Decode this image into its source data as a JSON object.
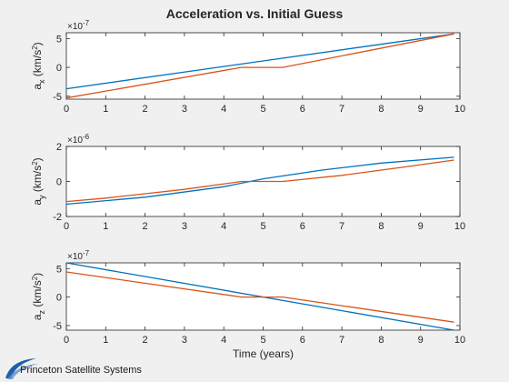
{
  "figure": {
    "title": "Acceleration vs. Initial Guess",
    "logo_text": "Princeton Satellite Systems",
    "colors": {
      "series1": "#0072BD",
      "series2": "#D95319"
    }
  },
  "chart_data": [
    {
      "type": "line",
      "ylabel_main": "a",
      "ylabel_sub": "x",
      "ylabel_unit_left": " (km/s",
      "ylabel_unit_right": ")",
      "ylabel_unit_sup": "2",
      "exponent_base": "×10",
      "exponent_power": "-7",
      "xlabel": "",
      "xlim": [
        0,
        10
      ],
      "ylim": [
        -5.5,
        6
      ],
      "xticks": [
        0,
        1,
        2,
        3,
        4,
        5,
        6,
        7,
        8,
        9,
        10
      ],
      "yticks": [
        -5,
        0,
        5
      ],
      "grid": false,
      "series": [
        {
          "x": [
            0,
            9.85
          ],
          "y": [
            -3.7,
            5.8
          ]
        },
        {
          "x": [
            0,
            4.45,
            5.5,
            9.85
          ],
          "y": [
            -5.3,
            0,
            0,
            5.8
          ]
        }
      ]
    },
    {
      "type": "line",
      "ylabel_main": "a",
      "ylabel_sub": "y",
      "ylabel_unit_left": " (km/s",
      "ylabel_unit_right": ")",
      "ylabel_unit_sup": "2",
      "exponent_base": "×10",
      "exponent_power": "-6",
      "xlabel": "",
      "xlim": [
        0,
        10
      ],
      "ylim": [
        -2,
        2
      ],
      "xticks": [
        0,
        1,
        2,
        3,
        4,
        5,
        6,
        7,
        8,
        9,
        10
      ],
      "yticks": [
        -2,
        0,
        2
      ],
      "grid": false,
      "series": [
        {
          "x": [
            0,
            2,
            4,
            5,
            6.5,
            8,
            9.85
          ],
          "y": [
            -1.3,
            -0.9,
            -0.3,
            0.15,
            0.65,
            1.05,
            1.38
          ]
        },
        {
          "x": [
            0,
            1,
            2,
            3,
            4.45,
            5.5,
            7,
            8.5,
            9.85
          ],
          "y": [
            -1.15,
            -0.95,
            -0.7,
            -0.45,
            0,
            0,
            0.35,
            0.8,
            1.22
          ]
        }
      ]
    },
    {
      "type": "line",
      "ylabel_main": "a",
      "ylabel_sub": "z",
      "ylabel_unit_left": " (km/s",
      "ylabel_unit_right": ")",
      "ylabel_unit_sup": "2",
      "exponent_base": "×10",
      "exponent_power": "-7",
      "xlabel": "Time (years)",
      "xlim": [
        0,
        10
      ],
      "ylim": [
        -5.8,
        6
      ],
      "xticks": [
        0,
        1,
        2,
        3,
        4,
        5,
        6,
        7,
        8,
        9,
        10
      ],
      "yticks": [
        -5,
        0,
        5
      ],
      "grid": false,
      "series": [
        {
          "x": [
            0,
            9.85
          ],
          "y": [
            6,
            -5.8
          ]
        },
        {
          "x": [
            0,
            4.45,
            5.5,
            9.85
          ],
          "y": [
            4.4,
            0,
            0,
            -4.4
          ]
        }
      ]
    }
  ]
}
